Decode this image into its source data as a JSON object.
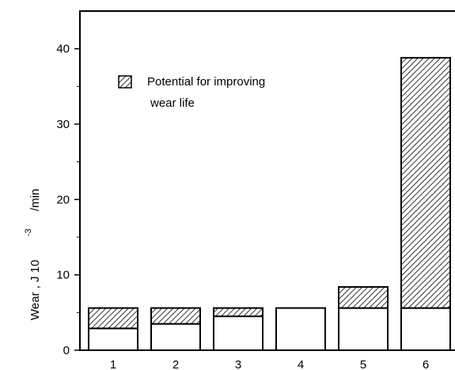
{
  "chart_data": {
    "type": "bar",
    "stacked": true,
    "categories": [
      "1",
      "2",
      "3",
      "4",
      "5",
      "6"
    ],
    "series": [
      {
        "values": [
          2.9,
          3.5,
          4.5,
          5.6,
          5.6,
          5.6
        ],
        "color": "#ffffff"
      },
      {
        "name": "Potential for improving wear life",
        "values": [
          2.7,
          2.1,
          1.1,
          0.0,
          2.8,
          33.2
        ],
        "color": "#000000",
        "pattern": "diagonal-hatch"
      }
    ],
    "ylabel_main": "Wear , J 10",
    "ylabel_exp": "-3",
    "ylabel_unit": "/min",
    "legend_line1": "Potential for improving",
    "legend_line2": "wear life",
    "ylim": [
      0,
      45
    ],
    "yticks": [
      "0",
      "10",
      "20",
      "30",
      "40"
    ],
    "grid": false,
    "legend_position": "top-left"
  }
}
